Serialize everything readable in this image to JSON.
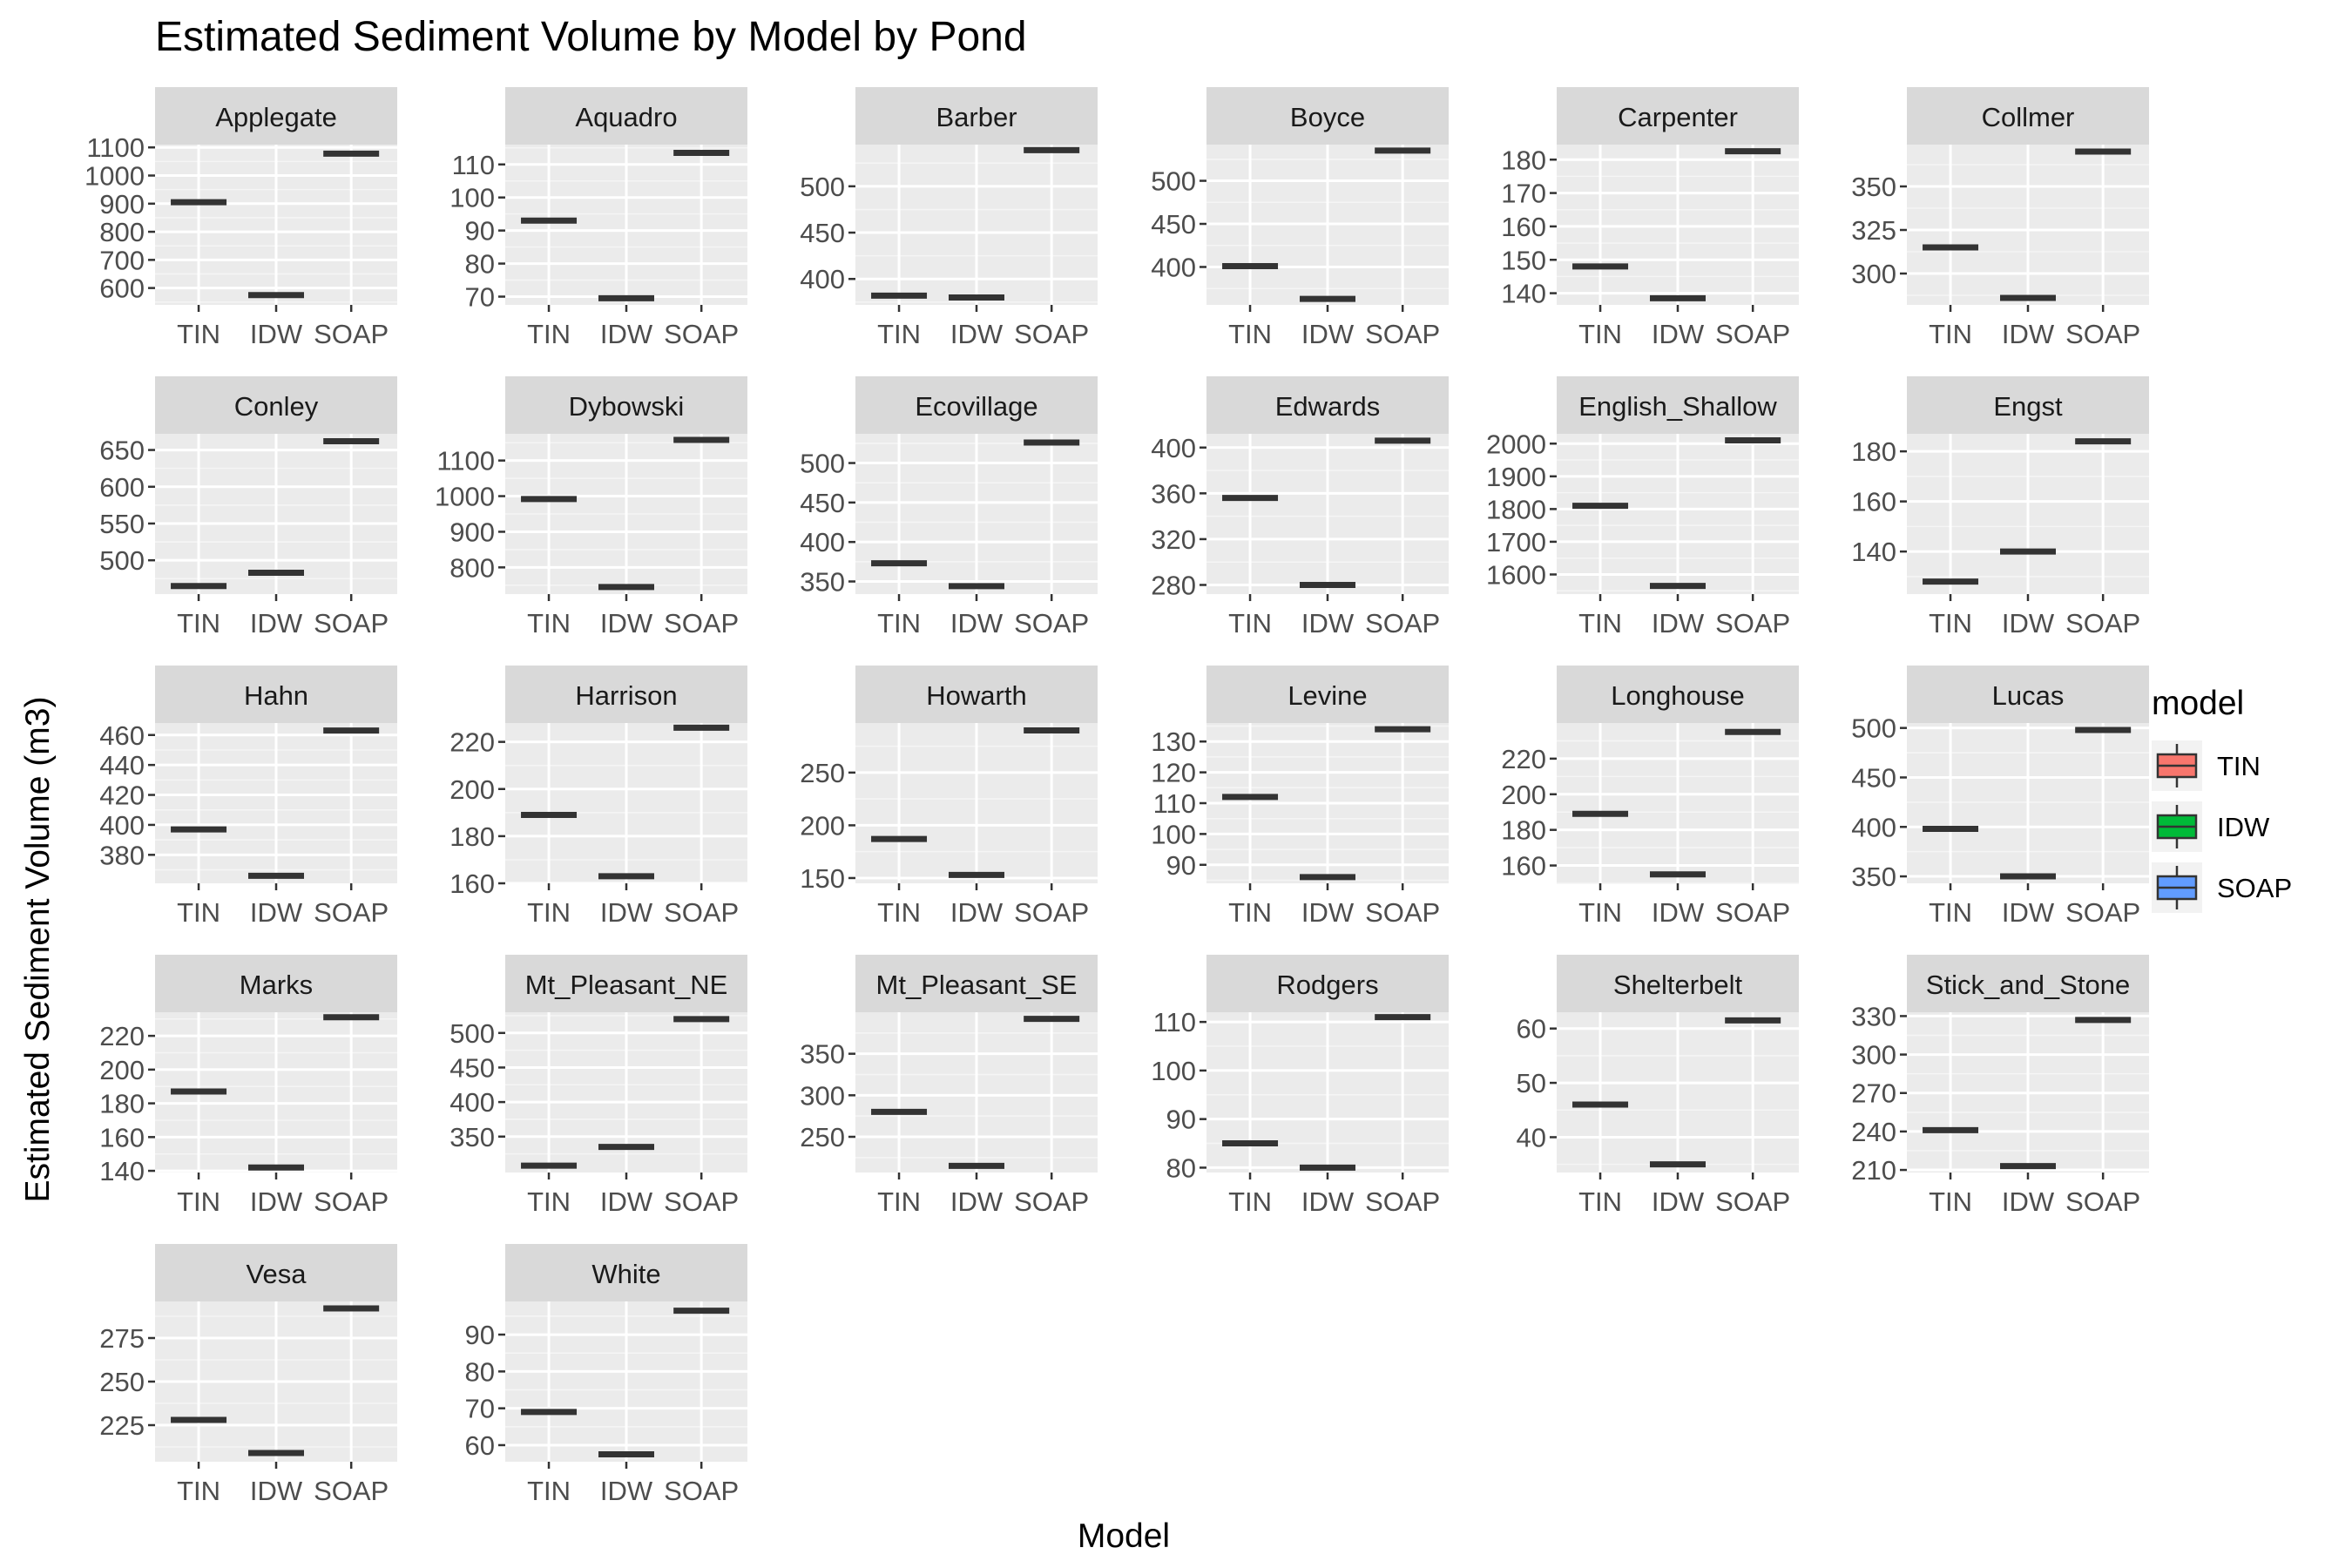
{
  "chart_data": {
    "type": "boxplot-facets",
    "title": "Estimated Sediment Volume by Model by Pond",
    "xlabel": "Model",
    "ylabel": "Estimated Sediment Volume (m3)",
    "categories": [
      "TIN",
      "IDW",
      "SOAP"
    ],
    "legend": {
      "title": "model",
      "position": "right",
      "entries": [
        {
          "label": "TIN",
          "color": "#F8766D"
        },
        {
          "label": "IDW",
          "color": "#00BA38"
        },
        {
          "label": "SOAP",
          "color": "#619CFF"
        }
      ]
    },
    "grid": true,
    "facets": [
      {
        "name": "Applegate",
        "values": [
          905,
          575,
          1078
        ],
        "ylim": [
          540,
          1110
        ],
        "ticks": [
          600,
          700,
          800,
          900,
          1000,
          1100
        ]
      },
      {
        "name": "Aquadro",
        "values": [
          93,
          69.5,
          113.5
        ],
        "ylim": [
          67.5,
          116
        ],
        "ticks": [
          70,
          80,
          90,
          100,
          110
        ]
      },
      {
        "name": "Barber",
        "values": [
          382,
          380,
          539
        ],
        "ylim": [
          372,
          545
        ],
        "ticks": [
          400,
          450,
          500
        ]
      },
      {
        "name": "Boyce",
        "values": [
          401,
          363,
          535
        ],
        "ylim": [
          356,
          542
        ],
        "ticks": [
          400,
          450,
          500
        ]
      },
      {
        "name": "Carpenter",
        "values": [
          148,
          138.5,
          182.5
        ],
        "ylim": [
          136.5,
          184.5
        ],
        "ticks": [
          140,
          150,
          160,
          170,
          180
        ]
      },
      {
        "name": "Collmer",
        "values": [
          315,
          286,
          370
        ],
        "ylim": [
          282,
          374
        ],
        "ticks": [
          300,
          325,
          350
        ]
      },
      {
        "name": "Conley",
        "values": [
          465,
          483,
          662
        ],
        "ylim": [
          454,
          672
        ],
        "ticks": [
          500,
          550,
          600,
          650
        ]
      },
      {
        "name": "Dybowski",
        "values": [
          992,
          745,
          1158
        ],
        "ylim": [
          725,
          1175
        ],
        "ticks": [
          800,
          900,
          1000,
          1100
        ]
      },
      {
        "name": "Ecovillage",
        "values": [
          373,
          344,
          526
        ],
        "ylim": [
          334,
          537
        ],
        "ticks": [
          350,
          400,
          450,
          500
        ]
      },
      {
        "name": "Edwards",
        "values": [
          356,
          280,
          406
        ],
        "ylim": [
          272,
          412
        ],
        "ticks": [
          280,
          320,
          360,
          400
        ]
      },
      {
        "name": "English_Shallow",
        "values": [
          1810,
          1565,
          2010
        ],
        "ylim": [
          1540,
          2030
        ],
        "ticks": [
          1600,
          1700,
          1800,
          1900,
          2000
        ]
      },
      {
        "name": "Engst",
        "values": [
          128,
          140,
          184
        ],
        "ylim": [
          123,
          187
        ],
        "ticks": [
          140,
          160,
          180
        ]
      },
      {
        "name": "Hahn",
        "values": [
          397,
          366,
          463
        ],
        "ylim": [
          361,
          468
        ],
        "ticks": [
          380,
          400,
          420,
          440,
          460
        ]
      },
      {
        "name": "Harrison",
        "values": [
          189,
          163,
          226
        ],
        "ylim": [
          160,
          228
        ],
        "ticks": [
          160,
          180,
          200,
          220
        ]
      },
      {
        "name": "Howarth",
        "values": [
          187,
          153,
          290
        ],
        "ylim": [
          145,
          297
        ],
        "ticks": [
          150,
          200,
          250
        ]
      },
      {
        "name": "Levine",
        "values": [
          112,
          86,
          134
        ],
        "ylim": [
          84,
          136
        ],
        "ticks": [
          90,
          100,
          110,
          120,
          130
        ]
      },
      {
        "name": "Longhouse",
        "values": [
          189,
          155,
          235
        ],
        "ylim": [
          150,
          240
        ],
        "ticks": [
          160,
          180,
          200,
          220
        ]
      },
      {
        "name": "Lucas",
        "values": [
          398,
          350,
          498
        ],
        "ylim": [
          343,
          505
        ],
        "ticks": [
          350,
          400,
          450,
          500
        ]
      },
      {
        "name": "Marks",
        "values": [
          187,
          142,
          231
        ],
        "ylim": [
          139,
          234
        ],
        "ticks": [
          140,
          160,
          180,
          200,
          220
        ]
      },
      {
        "name": "Mt_Pleasant_NE",
        "values": [
          308,
          335,
          520
        ],
        "ylim": [
          298,
          530
        ],
        "ticks": [
          350,
          400,
          450,
          500
        ]
      },
      {
        "name": "Mt_Pleasant_SE",
        "values": [
          280,
          215,
          392
        ],
        "ylim": [
          207,
          400
        ],
        "ticks": [
          250,
          300,
          350
        ]
      },
      {
        "name": "Rodgers",
        "values": [
          85,
          80,
          111
        ],
        "ylim": [
          79,
          112
        ],
        "ticks": [
          80,
          90,
          100,
          110
        ]
      },
      {
        "name": "Shelterbelt",
        "values": [
          46,
          35,
          61.5
        ],
        "ylim": [
          33.5,
          63
        ],
        "ticks": [
          40,
          50,
          60
        ]
      },
      {
        "name": "Stick_and_Stone",
        "values": [
          241,
          213,
          327
        ],
        "ylim": [
          208,
          333
        ],
        "ticks": [
          210,
          240,
          270,
          300,
          330
        ]
      },
      {
        "name": "Vesa",
        "values": [
          228,
          209,
          292
        ],
        "ylim": [
          204,
          296
        ],
        "ticks": [
          225,
          250,
          275
        ]
      },
      {
        "name": "White",
        "values": [
          69,
          57.5,
          96.5
        ],
        "ylim": [
          55.5,
          99
        ],
        "ticks": [
          60,
          70,
          80,
          90
        ]
      }
    ]
  }
}
